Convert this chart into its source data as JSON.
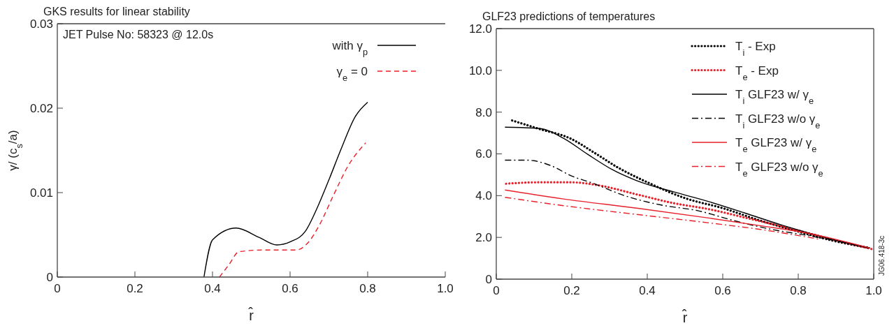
{
  "chart_data": [
    {
      "type": "line",
      "title": "GKS results for linear stability",
      "xlabel": "r̂",
      "ylabel": "γ/ (c$_{s}$/a)",
      "annotations": [
        "JET Pulse No: 58323 @ 12.0s"
      ],
      "xlim": [
        0,
        1
      ],
      "ylim": [
        0,
        0.03
      ],
      "xticks": [
        0,
        0.2,
        0.4,
        0.6,
        0.8,
        {
          "value": 1,
          "label": "1.0"
        }
      ],
      "yticks": [
        0,
        0.01,
        0.02,
        0.03
      ],
      "legend": "top right",
      "grid": false,
      "marker": "none",
      "series": [
        {
          "name": "with γ$_{p}$",
          "color": "#000000",
          "line_style": "solid",
          "x": [
            0.378,
            0.4,
            0.461,
            0.52,
            0.566,
            0.602,
            0.639,
            0.67,
            0.7,
            0.731,
            0.768,
            0.8
          ],
          "values": [
            0,
            0.0044,
            0.0058,
            0.0047,
            0.0038,
            0.0042,
            0.0054,
            0.0082,
            0.0115,
            0.0151,
            0.019,
            0.0207
          ]
        },
        {
          "name": "γ$_{e}$ = 0",
          "color": "#e8202a",
          "line_style": "dashed",
          "x": [
            0.418,
            0.443,
            0.468,
            0.529,
            0.615,
            0.645,
            0.676,
            0.713,
            0.75,
            0.795
          ],
          "values": [
            0,
            0.0015,
            0.003,
            0.0032,
            0.0032,
            0.004,
            0.0062,
            0.0098,
            0.0132,
            0.0159
          ]
        }
      ]
    },
    {
      "type": "line",
      "title": "GLF23 predictions of temperatures",
      "xlabel": "r̂",
      "annotations": [
        "JG06.418-3c"
      ],
      "xlim": [
        0,
        1
      ],
      "ylim": [
        0,
        12
      ],
      "xticks": [
        0,
        0.2,
        0.4,
        0.6,
        0.8,
        {
          "value": 1,
          "label": "1.0"
        }
      ],
      "yticks": [
        0,
        {
          "value": 2,
          "label": "2.0"
        },
        {
          "value": 4,
          "label": "4.0"
        },
        {
          "value": 6,
          "label": "6.0"
        },
        {
          "value": 8,
          "label": "8.0"
        },
        {
          "value": 10,
          "label": "10.0"
        },
        {
          "value": 12,
          "label": "12.0"
        }
      ],
      "legend": "top right",
      "grid": false,
      "marker": "none",
      "series": [
        {
          "name": "T$_{i}$ - Exp",
          "color": "#000000",
          "line_style": "dotted",
          "x": [
            0.042,
            0.113,
            0.197,
            0.262,
            0.32,
            0.405,
            0.5,
            0.6,
            0.7,
            0.79,
            0.89,
            0.99
          ],
          "values": [
            7.6,
            7.2,
            6.73,
            6.03,
            5.37,
            4.6,
            3.88,
            3.4,
            2.8,
            2.33,
            1.85,
            1.49
          ]
        },
        {
          "name": "T$_{e}$ - Exp",
          "color": "#e8202a",
          "line_style": "dotted",
          "x": [
            0.026,
            0.113,
            0.197,
            0.275,
            0.372,
            0.47,
            0.566,
            0.663,
            0.76,
            0.89,
            0.997
          ],
          "values": [
            4.57,
            4.64,
            4.64,
            4.48,
            4.06,
            3.64,
            3.34,
            2.93,
            2.51,
            1.91,
            1.43
          ]
        },
        {
          "name": "T$_{i}$ GLF23 w/ γ$_{e}$",
          "color": "#000000",
          "line_style": "solid",
          "x": [
            0.023,
            0.113,
            0.178,
            0.243,
            0.307,
            0.372,
            0.47,
            0.566,
            0.66,
            0.76,
            0.89,
            0.99
          ],
          "values": [
            7.28,
            7.22,
            6.75,
            5.97,
            5.25,
            4.72,
            4.18,
            3.7,
            3.16,
            2.57,
            1.91,
            1.49
          ]
        },
        {
          "name": "T$_{i}$ GLF23 w/o γ$_{e}$",
          "color": "#000000",
          "line_style": "dashdot",
          "x": [
            0.023,
            0.08,
            0.146,
            0.197,
            0.255,
            0.34,
            0.437,
            0.534,
            0.63,
            0.728,
            0.825,
            0.89,
            0.99
          ],
          "values": [
            5.7,
            5.7,
            5.43,
            4.96,
            4.6,
            4.0,
            3.55,
            3.28,
            2.8,
            2.39,
            2.09,
            1.87,
            1.49
          ]
        },
        {
          "name": "T$_{e}$ GLF23 w/ γ$_{e}$",
          "color": "#e8202a",
          "line_style": "solid",
          "x": [
            0.023,
            0.178,
            0.372,
            0.566,
            0.696,
            0.825,
            0.99
          ],
          "values": [
            4.27,
            3.84,
            3.4,
            2.92,
            2.57,
            2.2,
            1.49
          ]
        },
        {
          "name": "T$_{e}$ GLF23 w/o γ$_{e}$",
          "color": "#e8202a",
          "line_style": "dashdot",
          "x": [
            0.023,
            0.178,
            0.372,
            0.566,
            0.696,
            0.857
          ],
          "values": [
            3.92,
            3.52,
            3.1,
            2.69,
            2.39,
            1.91
          ]
        }
      ]
    }
  ]
}
